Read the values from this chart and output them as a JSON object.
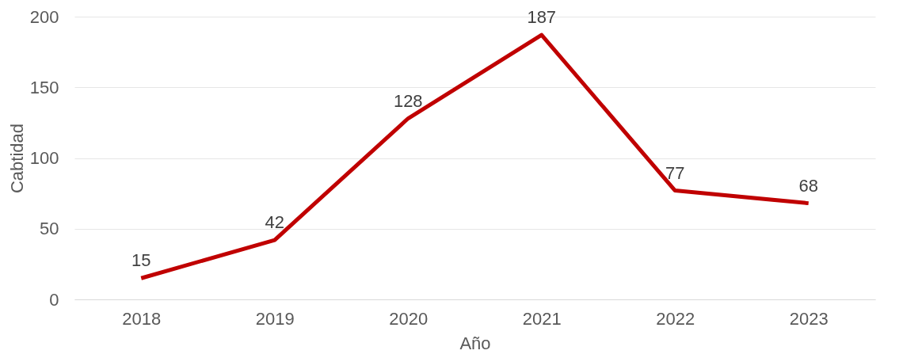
{
  "chart_data": {
    "type": "line",
    "xlabel": "Año",
    "ylabel": "Cabtidad",
    "categories": [
      "2018",
      "2019",
      "2020",
      "2021",
      "2022",
      "2023"
    ],
    "series": [
      {
        "color": "#c00000",
        "values": [
          15,
          42,
          128,
          187,
          77,
          68
        ]
      }
    ],
    "ylim": [
      0,
      200
    ],
    "yticks": [
      0,
      50,
      100,
      150,
      200
    ],
    "grid": "y",
    "data_labels": true,
    "legend": false,
    "marker": "none",
    "line_style": "solid"
  }
}
